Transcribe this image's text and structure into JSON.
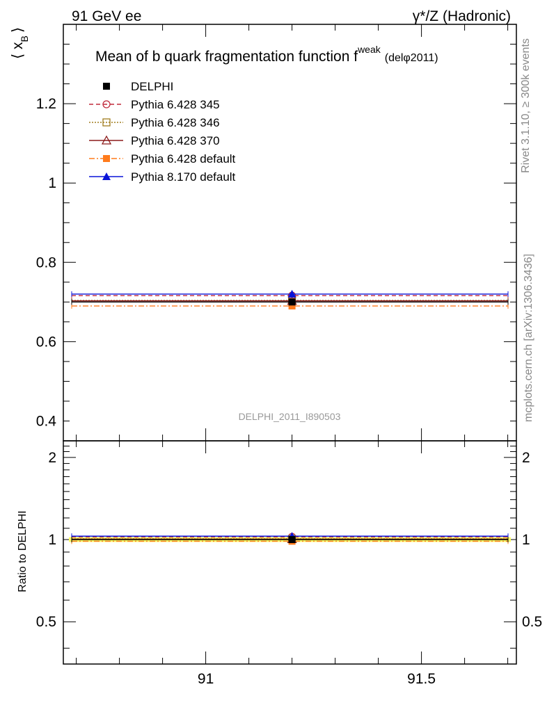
{
  "header": {
    "left": "91 GeV ee",
    "right": "γ*/Z (Hadronic)"
  },
  "side_text": {
    "rivet": "Rivet 3.1.10, ≥ 300k events",
    "mcplots": "mcplots.cern.ch [arXiv:1306.3436]"
  },
  "chart_data": [
    {
      "type": "line",
      "title_main": "Mean of b quark fragmentation function f",
      "title_sup": "weak",
      "title_tail": "(delφ2011)",
      "ylabel": "⟨ x",
      "ylabel_sub": "B",
      "ylabel_close": "⟩",
      "xlim": [
        90.67,
        91.72
      ],
      "ylim": [
        0.35,
        1.4
      ],
      "yticks": [
        0.4,
        0.6,
        0.8,
        1,
        1.2
      ],
      "ytick_labels": [
        "0.4",
        "0.6",
        "0.8",
        "1",
        "1.2"
      ],
      "watermark": "DELPHI_2011_I890503",
      "legend_position": "top-left",
      "series": [
        {
          "name": "DELPHI",
          "color": "#000000",
          "marker": "square-filled",
          "x": 91.2,
          "y": 0.7,
          "xerr": [
            90.67,
            91.72
          ],
          "dash": "none"
        },
        {
          "name": "Pythia 6.428 345",
          "color": "#c0283a",
          "marker": "circle-open",
          "x": 91.2,
          "y": 0.716,
          "xerr": [
            90.67,
            91.72
          ],
          "dash": "6,4"
        },
        {
          "name": "Pythia 6.428 346",
          "color": "#a07d1e",
          "marker": "square-open",
          "x": 91.2,
          "y": 0.704,
          "xerr": [
            90.67,
            91.72
          ],
          "dash": "2,2"
        },
        {
          "name": "Pythia 6.428 370",
          "color": "#8b1a1a",
          "marker": "triangle-open",
          "x": 91.2,
          "y": 0.703,
          "xerr": [
            90.67,
            91.72
          ],
          "dash": "none"
        },
        {
          "name": "Pythia 6.428 default",
          "color": "#ff7b1c",
          "marker": "square-filled",
          "x": 91.2,
          "y": 0.69,
          "xerr": [
            90.67,
            91.72
          ],
          "dash": "8,3,2,3"
        },
        {
          "name": "Pythia 8.170 default",
          "color": "#0a14d8",
          "marker": "triangle-filled",
          "x": 91.2,
          "y": 0.72,
          "xerr": [
            90.67,
            91.72
          ],
          "dash": "none"
        }
      ]
    },
    {
      "type": "line",
      "ylabel": "Ratio to DELPHI",
      "xlim": [
        90.67,
        91.72
      ],
      "ylim": [
        0.35,
        2.3
      ],
      "yticks": [
        0.5,
        1,
        2
      ],
      "ytick_labels": [
        "0.5",
        "1",
        "2"
      ],
      "xticks": [
        91,
        91.5
      ],
      "xtick_labels": [
        "91",
        "91.5"
      ],
      "band": {
        "low": 0.98,
        "high": 1.02,
        "color": "#ffff66"
      },
      "ratios": [
        1.0,
        1.023,
        1.006,
        1.004,
        0.986,
        1.029
      ]
    }
  ]
}
